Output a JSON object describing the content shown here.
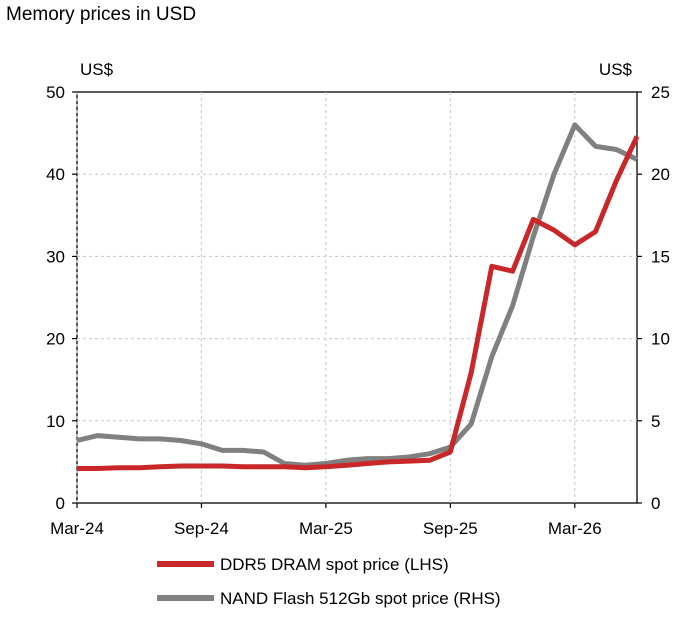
{
  "chart_data": {
    "type": "line",
    "title": "Memory prices in USD",
    "y_left": {
      "label": "US$",
      "lim": [
        0,
        50
      ],
      "ticks": [
        0,
        10,
        20,
        30,
        40,
        50
      ]
    },
    "y_right": {
      "label": "US$",
      "lim": [
        0,
        25
      ],
      "ticks": [
        0,
        5,
        10,
        15,
        20,
        25
      ]
    },
    "x_range": [
      "2024-03",
      "2026-06"
    ],
    "x_ticks": [
      "Mar-24",
      "Sep-24",
      "Mar-25",
      "Sep-25",
      "Mar-26"
    ],
    "grid": true,
    "legend_position": "bottom",
    "series": [
      {
        "name": "DDR5 DRAM spot price (LHS)",
        "axis": "left",
        "color": "#c8282a",
        "points": [
          [
            "2024-03",
            4.2
          ],
          [
            "2024-04",
            4.2
          ],
          [
            "2024-05",
            4.3
          ],
          [
            "2024-06",
            4.3
          ],
          [
            "2024-07",
            4.4
          ],
          [
            "2024-08",
            4.5
          ],
          [
            "2024-09",
            4.5
          ],
          [
            "2024-10",
            4.5
          ],
          [
            "2024-11",
            4.4
          ],
          [
            "2024-12",
            4.4
          ],
          [
            "2025-01",
            4.4
          ],
          [
            "2025-02",
            4.3
          ],
          [
            "2025-03",
            4.4
          ],
          [
            "2025-04",
            4.6
          ],
          [
            "2025-05",
            4.8
          ],
          [
            "2025-06",
            5.0
          ],
          [
            "2025-07",
            5.1
          ],
          [
            "2025-08",
            5.2
          ],
          [
            "2025-09",
            6.2
          ],
          [
            "2025-10",
            15.8
          ],
          [
            "2025-11",
            28.8
          ],
          [
            "2025-12",
            28.2
          ],
          [
            "2026-01",
            34.5
          ],
          [
            "2026-02",
            33.2
          ],
          [
            "2026-03",
            31.4
          ],
          [
            "2026-04",
            33.0
          ],
          [
            "2026-05",
            39.2
          ],
          [
            "2026-06",
            44.6
          ]
        ]
      },
      {
        "name": "NAND Flash 512Gb spot price (RHS)",
        "axis": "right",
        "color": "#808080",
        "points": [
          [
            "2024-03",
            3.8
          ],
          [
            "2024-04",
            4.1
          ],
          [
            "2024-05",
            4.0
          ],
          [
            "2024-06",
            3.9
          ],
          [
            "2024-07",
            3.9
          ],
          [
            "2024-08",
            3.8
          ],
          [
            "2024-09",
            3.6
          ],
          [
            "2024-10",
            3.2
          ],
          [
            "2024-11",
            3.2
          ],
          [
            "2024-12",
            3.1
          ],
          [
            "2025-01",
            2.4
          ],
          [
            "2025-02",
            2.3
          ],
          [
            "2025-03",
            2.4
          ],
          [
            "2025-04",
            2.6
          ],
          [
            "2025-05",
            2.7
          ],
          [
            "2025-06",
            2.7
          ],
          [
            "2025-07",
            2.8
          ],
          [
            "2025-08",
            3.0
          ],
          [
            "2025-09",
            3.4
          ],
          [
            "2025-10",
            4.8
          ],
          [
            "2025-11",
            8.9
          ],
          [
            "2025-12",
            12.0
          ],
          [
            "2026-01",
            16.2
          ],
          [
            "2026-02",
            20.0
          ],
          [
            "2026-03",
            23.0
          ],
          [
            "2026-04",
            21.7
          ],
          [
            "2026-05",
            21.5
          ],
          [
            "2026-06",
            20.9
          ]
        ]
      }
    ]
  }
}
